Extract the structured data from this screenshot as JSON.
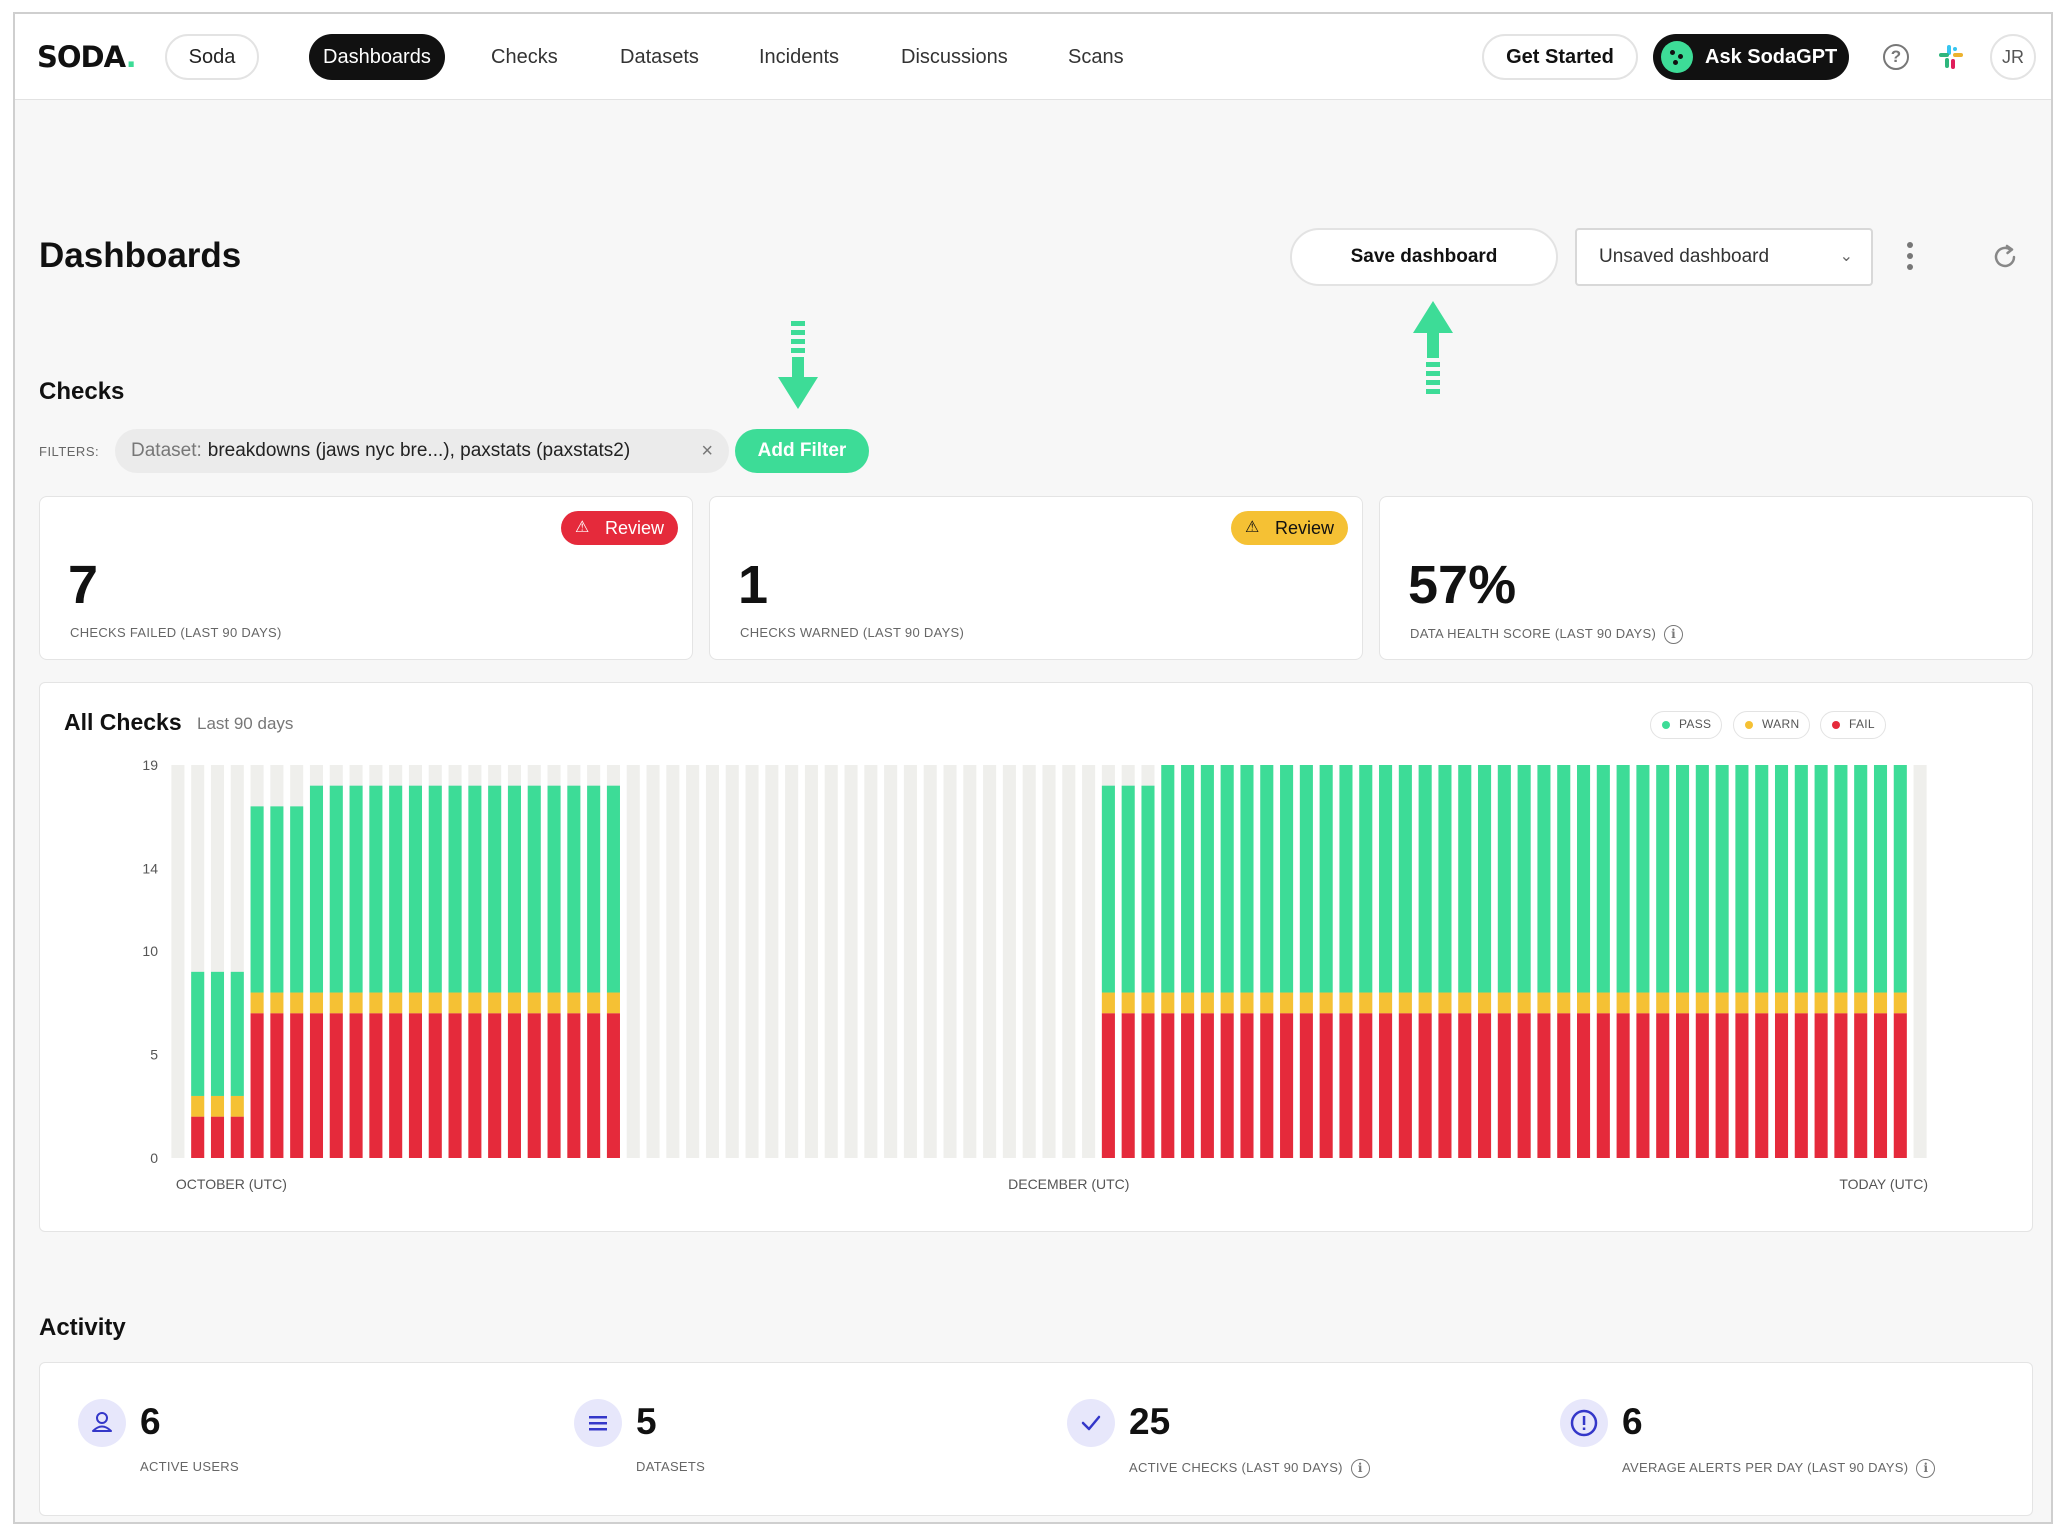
{
  "nav": {
    "logo": "SODA",
    "logo_dot": ".",
    "org": "Soda",
    "items": [
      "Dashboards",
      "Checks",
      "Datasets",
      "Incidents",
      "Discussions",
      "Scans"
    ],
    "get_started": "Get Started",
    "ask": "Ask SodaGPT",
    "help": "?",
    "avatar": "JR"
  },
  "header": {
    "title": "Dashboards",
    "save": "Save dashboard",
    "select": "Unsaved dashboard"
  },
  "checks": {
    "title": "Checks",
    "filters_label": "FILTERS:",
    "filter_key": "Dataset:",
    "filter_value": "breakdowns (jaws nyc bre...), paxstats (paxstats2)",
    "filter_remove": "×",
    "add_filter": "Add Filter",
    "kpis": [
      {
        "value": "7",
        "label": "CHECKS FAILED (LAST 90 DAYS)",
        "badge": "Review",
        "badge_icon": "⚠"
      },
      {
        "value": "1",
        "label": "CHECKS WARNED (LAST 90 DAYS)",
        "badge": "Review",
        "badge_icon": "⚠"
      },
      {
        "value": "57%",
        "label": "DATA HEALTH SCORE (LAST 90 DAYS)",
        "info": "i"
      }
    ]
  },
  "chart": {
    "title": "All Checks",
    "subtitle": "Last 90 days",
    "legend": [
      "PASS",
      "WARN",
      "FAIL"
    ]
  },
  "colors": {
    "pass": "#3ddc97",
    "warn": "#f5c134",
    "fail": "#e52a3b",
    "empty": "#efefec",
    "accent": "#3ddc97"
  },
  "chart_data": {
    "type": "bar",
    "stacked": true,
    "title": "All Checks",
    "subtitle": "Last 90 days",
    "x_tick_labels": [
      "OCTOBER (UTC)",
      "DECEMBER (UTC)",
      "TODAY (UTC)"
    ],
    "y_ticks": [
      0,
      5,
      10,
      14,
      19
    ],
    "ylim": [
      0,
      19
    ],
    "legend": "top-right",
    "columns": 89,
    "series": [
      {
        "name": "FAIL",
        "values": [
          0,
          2,
          2,
          2,
          7,
          7,
          7,
          7,
          7,
          7,
          7,
          7,
          7,
          7,
          7,
          7,
          7,
          7,
          7,
          7,
          7,
          7,
          7,
          0,
          0,
          0,
          0,
          0,
          0,
          0,
          0,
          0,
          0,
          0,
          0,
          0,
          0,
          0,
          0,
          0,
          0,
          0,
          0,
          0,
          0,
          0,
          0,
          7,
          7,
          7,
          7,
          7,
          7,
          7,
          7,
          7,
          7,
          7,
          7,
          7,
          7,
          7,
          7,
          7,
          7,
          7,
          7,
          7,
          7,
          7,
          7,
          7,
          7,
          7,
          7,
          7,
          7,
          7,
          7,
          7,
          7,
          7,
          7,
          7,
          7,
          7,
          7,
          7,
          0
        ]
      },
      {
        "name": "WARN",
        "values": [
          0,
          1,
          1,
          1,
          1,
          1,
          1,
          1,
          1,
          1,
          1,
          1,
          1,
          1,
          1,
          1,
          1,
          1,
          1,
          1,
          1,
          1,
          1,
          0,
          0,
          0,
          0,
          0,
          0,
          0,
          0,
          0,
          0,
          0,
          0,
          0,
          0,
          0,
          0,
          0,
          0,
          0,
          0,
          0,
          0,
          0,
          0,
          1,
          1,
          1,
          1,
          1,
          1,
          1,
          1,
          1,
          1,
          1,
          1,
          1,
          1,
          1,
          1,
          1,
          1,
          1,
          1,
          1,
          1,
          1,
          1,
          1,
          1,
          1,
          1,
          1,
          1,
          1,
          1,
          1,
          1,
          1,
          1,
          1,
          1,
          1,
          1,
          1,
          0
        ]
      },
      {
        "name": "PASS",
        "values": [
          0,
          6,
          6,
          6,
          9,
          9,
          9,
          10,
          10,
          10,
          10,
          10,
          10,
          10,
          10,
          10,
          10,
          10,
          10,
          10,
          10,
          10,
          10,
          0,
          0,
          0,
          0,
          0,
          0,
          0,
          0,
          0,
          0,
          0,
          0,
          0,
          0,
          0,
          0,
          0,
          0,
          0,
          0,
          0,
          0,
          0,
          0,
          10,
          10,
          10,
          11,
          11,
          11,
          11,
          11,
          11,
          11,
          11,
          11,
          11,
          11,
          11,
          11,
          11,
          11,
          11,
          11,
          11,
          11,
          11,
          11,
          11,
          11,
          11,
          11,
          11,
          11,
          11,
          11,
          11,
          11,
          11,
          11,
          11,
          11,
          11,
          11,
          11,
          0
        ]
      }
    ]
  },
  "activity": {
    "title": "Activity",
    "items": [
      {
        "value": "6",
        "label": "ACTIVE USERS",
        "icon": "user-icon"
      },
      {
        "value": "5",
        "label": "DATASETS",
        "icon": "list-icon"
      },
      {
        "value": "25",
        "label": "ACTIVE CHECKS (LAST 90 DAYS)",
        "icon": "check-icon",
        "info": "i"
      },
      {
        "value": "6",
        "label": "AVERAGE ALERTS PER DAY (LAST 90 DAYS)",
        "icon": "alert-icon",
        "info": "i"
      }
    ]
  }
}
